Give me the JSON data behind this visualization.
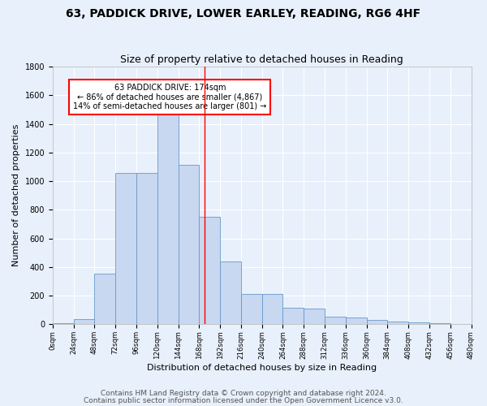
{
  "title1": "63, PADDICK DRIVE, LOWER EARLEY, READING, RG6 4HF",
  "title2": "Size of property relative to detached houses in Reading",
  "xlabel": "Distribution of detached houses by size in Reading",
  "ylabel": "Number of detached properties",
  "bar_color": "#c8d8f0",
  "bar_edge_color": "#6699cc",
  "bins": [
    0,
    24,
    48,
    72,
    96,
    120,
    144,
    168,
    192,
    216,
    240,
    264,
    288,
    312,
    336,
    360,
    384,
    408,
    432,
    456,
    480
  ],
  "counts": [
    10,
    35,
    355,
    1060,
    1060,
    1470,
    1115,
    750,
    440,
    215,
    215,
    115,
    110,
    55,
    50,
    30,
    20,
    15,
    10,
    5
  ],
  "property_size": 174,
  "annotation_line1": "63 PADDICK DRIVE: 174sqm",
  "annotation_line2": "← 86% of detached houses are smaller (4,867)",
  "annotation_line3": "14% of semi-detached houses are larger (801) →",
  "footnote1": "Contains HM Land Registry data © Crown copyright and database right 2024.",
  "footnote2": "Contains public sector information licensed under the Open Government Licence v3.0.",
  "background_color": "#e8f0fb",
  "grid_color": "#ffffff",
  "ylim": [
    0,
    1800
  ],
  "axis_fontsize": 8,
  "footnote_fontsize": 6.5
}
